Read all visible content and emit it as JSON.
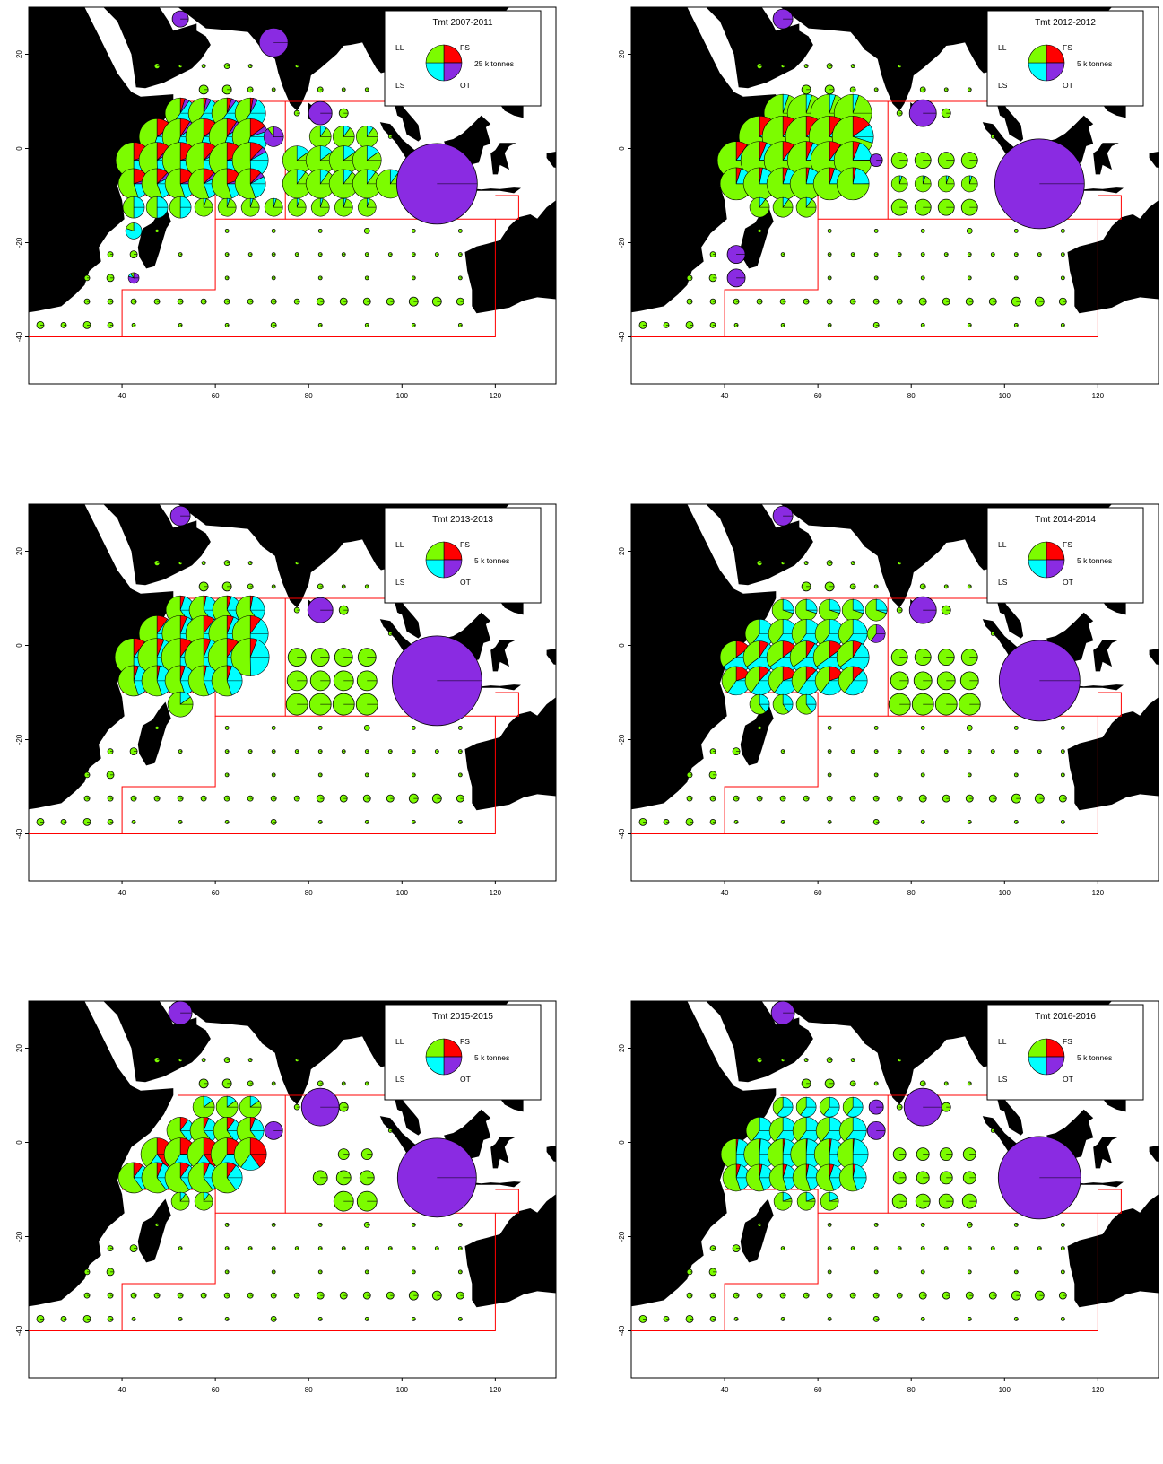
{
  "colors": {
    "LL": "#7cfc00",
    "FS": "#ff0000",
    "LS": "#00ffff",
    "OT": "#8a2be2",
    "land": "#000000",
    "regions": "#ff0000"
  },
  "axes": {
    "x_ticks": [
      "40",
      "60",
      "80",
      "100",
      "120"
    ],
    "y_ticks": [
      "20",
      "0",
      "-20",
      "-40"
    ],
    "x_range": [
      20,
      133
    ],
    "y_range": [
      -50,
      30
    ]
  },
  "legend_keys": {
    "ll": "LL",
    "fs": "FS",
    "ls": "LS",
    "ot": "OT"
  },
  "panels": [
    {
      "title": "Tmt 2007-2011",
      "scale": "25 k tonnes",
      "big": [
        {
          "lon": 52.5,
          "lat": 27.5,
          "r": 9,
          "p": [
            0,
            0,
            0,
            1
          ]
        },
        {
          "lon": 72.5,
          "lat": 22.5,
          "r": 16,
          "p": [
            0,
            0,
            0,
            1
          ]
        },
        {
          "lon": 82.5,
          "lat": 7.5,
          "r": 13,
          "p": [
            0,
            0,
            0,
            1
          ]
        },
        {
          "lon": 107.5,
          "lat": -7.5,
          "r": 45,
          "p": [
            0,
            0,
            0,
            1
          ]
        },
        {
          "lon": 72.5,
          "lat": 2.5,
          "r": 11,
          "p": [
            0.1,
            0,
            0,
            0.9
          ]
        }
      ],
      "grid": [
        {
          "lat": 7.5,
          "lons": [
            52.5,
            57.5,
            62.5,
            67.5
          ],
          "r": 17,
          "p": [
            0.4,
            0.05,
            0.5,
            0.05
          ]
        },
        {
          "lat": 2.5,
          "lons": [
            47.5,
            52.5,
            57.5,
            62.5,
            67.5
          ],
          "r": 20,
          "p": [
            0.45,
            0.15,
            0.35,
            0.05
          ]
        },
        {
          "lat": -2.5,
          "lons": [
            42.5,
            47.5,
            52.5,
            57.5,
            62.5,
            67.5
          ],
          "r": 20,
          "p": [
            0.5,
            0.2,
            0.25,
            0.05
          ]
        },
        {
          "lat": -7.5,
          "lons": [
            42.5,
            47.5,
            52.5,
            57.5,
            62.5,
            67.5
          ],
          "r": 17,
          "p": [
            0.55,
            0.2,
            0.2,
            0.05
          ]
        },
        {
          "lat": -12.5,
          "lons": [
            42.5,
            47.5,
            52.5
          ],
          "r": 12,
          "p": [
            0.5,
            0,
            0.5,
            0
          ]
        },
        {
          "lat": 2.5,
          "lons": [
            82.5,
            87.5,
            92.5
          ],
          "r": 12,
          "p": [
            0.9,
            0,
            0.1,
            0
          ]
        },
        {
          "lat": -2.5,
          "lons": [
            77.5,
            82.5,
            87.5,
            92.5
          ],
          "r": 16,
          "p": [
            0.85,
            0,
            0.15,
            0
          ]
        },
        {
          "lat": -7.5,
          "lons": [
            77.5,
            82.5,
            87.5,
            92.5,
            97.5
          ],
          "r": 16,
          "p": [
            0.9,
            0,
            0.1,
            0
          ]
        },
        {
          "lat": -12.5,
          "lons": [
            57.5,
            62.5,
            67.5,
            72.5,
            77.5,
            82.5,
            87.5,
            92.5
          ],
          "r": 10,
          "p": [
            0.95,
            0,
            0.05,
            0
          ]
        },
        {
          "lat": -12.5,
          "lons": [
            102.5,
            107.5,
            112.5
          ],
          "r": 7,
          "p": [
            1,
            0,
            0,
            0
          ]
        },
        {
          "lat": -17.5,
          "lons": [
            42.5
          ],
          "r": 9,
          "p": [
            0.2,
            0,
            0.8,
            0
          ]
        },
        {
          "lat": -27.5,
          "lons": [
            42.5
          ],
          "r": 6,
          "p": [
            0.1,
            0,
            0.1,
            0.8
          ]
        }
      ]
    },
    {
      "title": "Tmt 2012-2012",
      "scale": "5 k tonnes",
      "big": [
        {
          "lon": 52.5,
          "lat": 27.5,
          "r": 11,
          "p": [
            0,
            0,
            0,
            1
          ]
        },
        {
          "lon": 82.5,
          "lat": 7.5,
          "r": 15,
          "p": [
            0,
            0,
            0,
            1
          ]
        },
        {
          "lon": 107.5,
          "lat": -7.5,
          "r": 50,
          "p": [
            0,
            0,
            0,
            1
          ]
        },
        {
          "lon": 42.5,
          "lat": -22.5,
          "r": 10,
          "p": [
            0,
            0,
            0,
            1
          ]
        },
        {
          "lon": 42.5,
          "lat": -27.5,
          "r": 10,
          "p": [
            0,
            0,
            0,
            1
          ]
        },
        {
          "lon": 72.5,
          "lat": -2.5,
          "r": 7,
          "p": [
            0,
            0,
            0,
            1
          ]
        }
      ],
      "grid": [
        {
          "lat": 7.5,
          "lons": [
            52.5,
            57.5,
            62.5,
            67.5
          ],
          "r": 21,
          "p": [
            0.95,
            0,
            0.05,
            0
          ]
        },
        {
          "lat": 2.5,
          "lons": [
            47.5,
            52.5,
            57.5,
            62.5,
            67.5
          ],
          "r": 23,
          "p": [
            0.7,
            0.15,
            0.15,
            0
          ]
        },
        {
          "lat": -2.5,
          "lons": [
            42.5,
            47.5,
            52.5,
            57.5,
            62.5,
            67.5
          ],
          "r": 21,
          "p": [
            0.75,
            0.1,
            0.15,
            0
          ]
        },
        {
          "lat": -7.5,
          "lons": [
            42.5,
            47.5,
            52.5,
            57.5,
            62.5,
            67.5
          ],
          "r": 18,
          "p": [
            0.75,
            0.05,
            0.2,
            0
          ]
        },
        {
          "lat": -12.5,
          "lons": [
            47.5,
            52.5,
            57.5
          ],
          "r": 11,
          "p": [
            0.9,
            0,
            0.1,
            0
          ]
        },
        {
          "lat": -2.5,
          "lons": [
            77.5,
            82.5,
            87.5,
            92.5
          ],
          "r": 9,
          "p": [
            1,
            0,
            0,
            0
          ]
        },
        {
          "lat": -7.5,
          "lons": [
            77.5,
            82.5,
            87.5,
            92.5
          ],
          "r": 9,
          "p": [
            0.95,
            0,
            0.05,
            0
          ]
        },
        {
          "lat": -12.5,
          "lons": [
            77.5,
            82.5,
            87.5,
            92.5
          ],
          "r": 9,
          "p": [
            1,
            0,
            0,
            0
          ]
        }
      ]
    },
    {
      "title": "Tmt 2013-2013",
      "scale": "5 k tonnes",
      "big": [
        {
          "lon": 52.5,
          "lat": 27.5,
          "r": 11,
          "p": [
            0,
            0,
            0,
            1
          ]
        },
        {
          "lon": 82.5,
          "lat": 7.5,
          "r": 14,
          "p": [
            0,
            0,
            0,
            1
          ]
        },
        {
          "lon": 107.5,
          "lat": -7.5,
          "r": 50,
          "p": [
            0,
            0,
            0,
            1
          ]
        }
      ],
      "grid": [
        {
          "lat": 7.5,
          "lons": [
            52.5,
            57.5,
            62.5,
            67.5
          ],
          "r": 16,
          "p": [
            0.6,
            0.05,
            0.35,
            0
          ]
        },
        {
          "lat": 2.5,
          "lons": [
            47.5,
            52.5,
            57.5,
            62.5,
            67.5
          ],
          "r": 20,
          "p": [
            0.5,
            0.1,
            0.4,
            0
          ]
        },
        {
          "lat": -2.5,
          "lons": [
            42.5,
            47.5,
            52.5,
            57.5,
            62.5,
            67.5
          ],
          "r": 21,
          "p": [
            0.5,
            0.1,
            0.4,
            0
          ]
        },
        {
          "lat": -7.5,
          "lons": [
            42.5,
            47.5,
            52.5,
            57.5,
            62.5
          ],
          "r": 17,
          "p": [
            0.55,
            0.05,
            0.4,
            0
          ]
        },
        {
          "lat": -12.5,
          "lons": [
            52.5
          ],
          "r": 14,
          "p": [
            0.85,
            0,
            0.15,
            0
          ]
        },
        {
          "lat": -2.5,
          "lons": [
            77.5,
            82.5,
            87.5,
            92.5
          ],
          "r": 10,
          "p": [
            1,
            0,
            0,
            0
          ]
        },
        {
          "lat": -7.5,
          "lons": [
            77.5,
            82.5,
            87.5,
            92.5
          ],
          "r": 11,
          "p": [
            1,
            0,
            0,
            0
          ]
        },
        {
          "lat": -12.5,
          "lons": [
            77.5,
            82.5,
            87.5,
            92.5
          ],
          "r": 12,
          "p": [
            1,
            0,
            0,
            0
          ]
        }
      ]
    },
    {
      "title": "Tmt 2014-2014",
      "scale": "5 k tonnes",
      "big": [
        {
          "lon": 52.5,
          "lat": 27.5,
          "r": 11,
          "p": [
            0,
            0,
            0,
            1
          ]
        },
        {
          "lon": 82.5,
          "lat": 7.5,
          "r": 15,
          "p": [
            0,
            0,
            0,
            1
          ]
        },
        {
          "lon": 107.5,
          "lat": -7.5,
          "r": 45,
          "p": [
            0,
            0,
            0,
            1
          ]
        },
        {
          "lon": 72.5,
          "lat": 2.5,
          "r": 10,
          "p": [
            0.4,
            0,
            0,
            0.6
          ]
        }
      ],
      "grid": [
        {
          "lat": 7.5,
          "lons": [
            52.5,
            57.5,
            62.5,
            67.5,
            72.5
          ],
          "r": 12,
          "p": [
            0.7,
            0,
            0.3,
            0
          ]
        },
        {
          "lat": 2.5,
          "lons": [
            47.5,
            52.5,
            57.5,
            62.5,
            67.5
          ],
          "r": 16,
          "p": [
            0.4,
            0,
            0.6,
            0
          ]
        },
        {
          "lat": -2.5,
          "lons": [
            42.5,
            47.5,
            52.5,
            57.5,
            62.5,
            67.5
          ],
          "r": 18,
          "p": [
            0.35,
            0.15,
            0.5,
            0
          ]
        },
        {
          "lat": -7.5,
          "lons": [
            42.5,
            47.5,
            52.5,
            57.5,
            62.5,
            67.5
          ],
          "r": 16,
          "p": [
            0.4,
            0.2,
            0.4,
            0
          ]
        },
        {
          "lat": -12.5,
          "lons": [
            47.5,
            52.5,
            57.5
          ],
          "r": 11,
          "p": [
            0.6,
            0,
            0.4,
            0
          ]
        },
        {
          "lat": -2.5,
          "lons": [
            77.5,
            82.5,
            87.5,
            92.5
          ],
          "r": 9,
          "p": [
            1,
            0,
            0,
            0
          ]
        },
        {
          "lat": -7.5,
          "lons": [
            77.5,
            82.5,
            87.5,
            92.5
          ],
          "r": 10,
          "p": [
            1,
            0,
            0,
            0
          ]
        },
        {
          "lat": -12.5,
          "lons": [
            77.5,
            82.5,
            87.5,
            92.5
          ],
          "r": 12,
          "p": [
            1,
            0,
            0,
            0
          ]
        }
      ]
    },
    {
      "title": "Tmt 2015-2015",
      "scale": "5 k tonnes",
      "big": [
        {
          "lon": 52.5,
          "lat": 27.5,
          "r": 13,
          "p": [
            0,
            0,
            0,
            1
          ]
        },
        {
          "lon": 82.5,
          "lat": 7.5,
          "r": 21,
          "p": [
            0,
            0,
            0,
            1
          ]
        },
        {
          "lon": 107.5,
          "lat": -7.5,
          "r": 44,
          "p": [
            0,
            0,
            0,
            1
          ]
        },
        {
          "lon": 72.5,
          "lat": 2.5,
          "r": 10,
          "p": [
            0,
            0,
            0,
            1
          ]
        }
      ],
      "grid": [
        {
          "lat": 7.5,
          "lons": [
            57.5,
            62.5,
            67.5
          ],
          "r": 12,
          "p": [
            0.85,
            0,
            0.15,
            0
          ]
        },
        {
          "lat": 2.5,
          "lons": [
            52.5,
            57.5,
            62.5,
            67.5
          ],
          "r": 15,
          "p": [
            0.6,
            0.1,
            0.3,
            0
          ]
        },
        {
          "lat": -2.5,
          "lons": [
            47.5,
            52.5,
            57.5,
            62.5,
            67.5
          ],
          "r": 18,
          "p": [
            0.4,
            0.4,
            0.2,
            0
          ]
        },
        {
          "lat": -7.5,
          "lons": [
            42.5,
            47.5,
            52.5,
            57.5,
            62.5
          ],
          "r": 17,
          "p": [
            0.6,
            0.1,
            0.3,
            0
          ]
        },
        {
          "lat": -12.5,
          "lons": [
            52.5,
            57.5
          ],
          "r": 10,
          "p": [
            0.9,
            0,
            0.1,
            0
          ]
        },
        {
          "lat": -7.5,
          "lons": [
            82.5,
            87.5,
            92.5
          ],
          "r": 8,
          "p": [
            1,
            0,
            0,
            0
          ]
        },
        {
          "lat": -12.5,
          "lons": [
            87.5,
            92.5
          ],
          "r": 11,
          "p": [
            1,
            0,
            0,
            0
          ]
        },
        {
          "lat": -2.5,
          "lons": [
            87.5,
            92.5
          ],
          "r": 6,
          "p": [
            1,
            0,
            0,
            0
          ]
        }
      ]
    },
    {
      "title": "Tmt 2016-2016",
      "scale": "5 k tonnes",
      "big": [
        {
          "lon": 52.5,
          "lat": 27.5,
          "r": 13,
          "p": [
            0,
            0,
            0,
            1
          ]
        },
        {
          "lon": 82.5,
          "lat": 7.5,
          "r": 21,
          "p": [
            0,
            0,
            0,
            1
          ]
        },
        {
          "lon": 107.5,
          "lat": -7.5,
          "r": 46,
          "p": [
            0,
            0,
            0,
            1
          ]
        },
        {
          "lon": 72.5,
          "lat": 7.5,
          "r": 8,
          "p": [
            0,
            0,
            0,
            1
          ]
        },
        {
          "lon": 72.5,
          "lat": 2.5,
          "r": 10,
          "p": [
            0,
            0,
            0,
            1
          ]
        }
      ],
      "grid": [
        {
          "lat": 7.5,
          "lons": [
            52.5,
            57.5,
            62.5,
            67.5
          ],
          "r": 11,
          "p": [
            0.4,
            0,
            0.6,
            0
          ]
        },
        {
          "lat": 2.5,
          "lons": [
            47.5,
            52.5,
            57.5,
            62.5,
            67.5
          ],
          "r": 15,
          "p": [
            0.4,
            0,
            0.6,
            0
          ]
        },
        {
          "lat": -2.5,
          "lons": [
            42.5,
            47.5,
            52.5,
            57.5,
            62.5,
            67.5
          ],
          "r": 17,
          "p": [
            0.5,
            0.02,
            0.48,
            0
          ]
        },
        {
          "lat": -7.5,
          "lons": [
            42.5,
            47.5,
            52.5,
            57.5,
            62.5,
            67.5
          ],
          "r": 15,
          "p": [
            0.55,
            0.05,
            0.4,
            0
          ]
        },
        {
          "lat": -12.5,
          "lons": [
            52.5,
            57.5,
            62.5
          ],
          "r": 10,
          "p": [
            0.8,
            0,
            0.2,
            0
          ]
        },
        {
          "lat": -2.5,
          "lons": [
            77.5,
            82.5,
            87.5,
            92.5
          ],
          "r": 7,
          "p": [
            1,
            0,
            0,
            0
          ]
        },
        {
          "lat": -7.5,
          "lons": [
            77.5,
            82.5,
            87.5,
            92.5
          ],
          "r": 7,
          "p": [
            1,
            0,
            0,
            0
          ]
        },
        {
          "lat": -12.5,
          "lons": [
            77.5,
            82.5,
            87.5,
            92.5,
            102.5
          ],
          "r": 8,
          "p": [
            1,
            0,
            0,
            0
          ]
        }
      ]
    }
  ]
}
